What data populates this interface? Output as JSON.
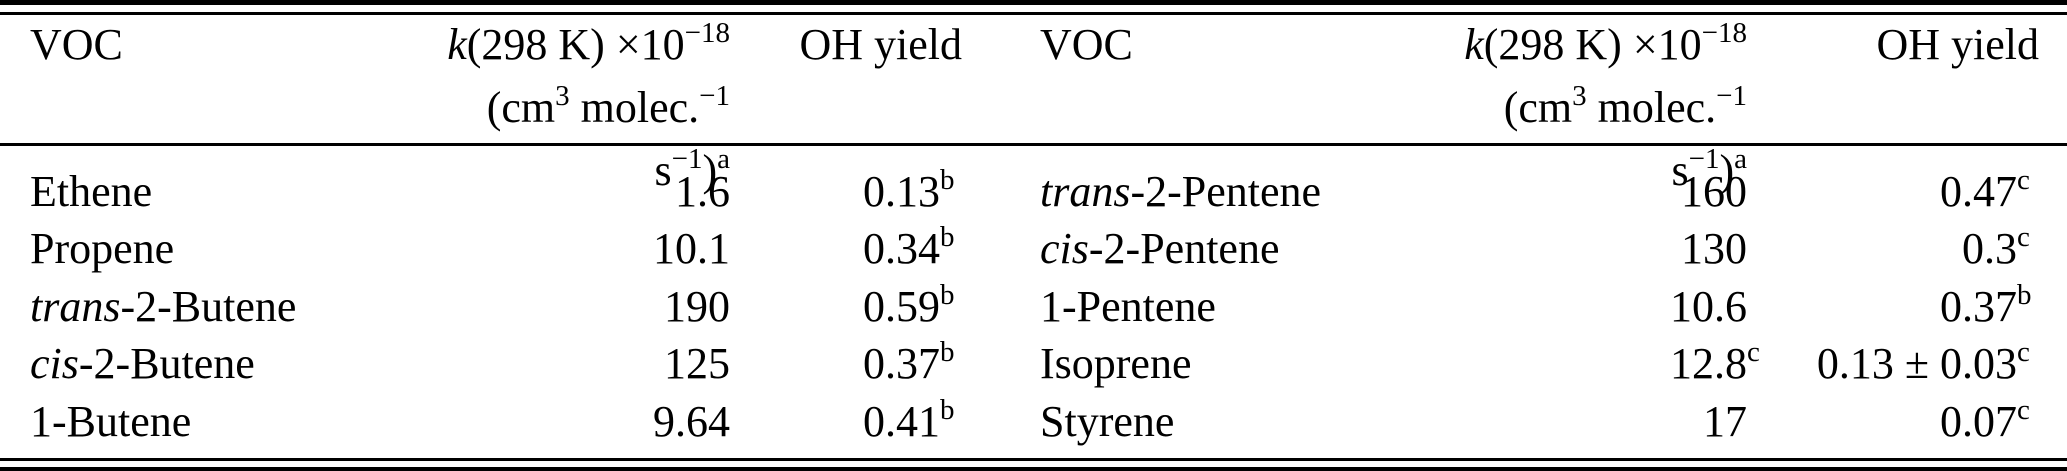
{
  "table": {
    "header": {
      "voc_label": "VOC",
      "k_line1_italic": "k",
      "k_line1_text": "(298 K) ×10",
      "k_line1_sup": "−18",
      "k_line2_t1": "(cm",
      "k_line2_s1": "3",
      "k_line2_t2": " molec.",
      "k_line2_s2": "−1",
      "k_line2_t3": " s",
      "k_line2_s3": "−1",
      "k_line2_t4": ")",
      "k_line2_s4": "a",
      "oh_label": "OH yield"
    },
    "left_rows": [
      {
        "voc_i": "",
        "voc_r": "Ethene",
        "k": "1.6",
        "k_sup": "",
        "oh": "0.13",
        "oh_sup": "b"
      },
      {
        "voc_i": "",
        "voc_r": "Propene",
        "k": "10.1",
        "k_sup": "",
        "oh": "0.34",
        "oh_sup": "b"
      },
      {
        "voc_i": "trans",
        "voc_r": "-2-Butene",
        "k": "190",
        "k_sup": "",
        "oh": "0.59",
        "oh_sup": "b"
      },
      {
        "voc_i": "cis",
        "voc_r": "-2-Butene",
        "k": "125",
        "k_sup": "",
        "oh": "0.37",
        "oh_sup": "b"
      },
      {
        "voc_i": "",
        "voc_r": "1-Butene",
        "k": "9.64",
        "k_sup": "",
        "oh": "0.41",
        "oh_sup": "b"
      }
    ],
    "right_rows": [
      {
        "voc_i": "trans",
        "voc_r": "-2-Pentene",
        "k": "160",
        "k_sup": "",
        "oh": "0.47",
        "oh_sup": "c"
      },
      {
        "voc_i": "cis",
        "voc_r": "-2-Pentene",
        "k": "130",
        "k_sup": "",
        "oh": "0.3",
        "oh_sup": "c"
      },
      {
        "voc_i": "",
        "voc_r": "1-Pentene",
        "k": "10.6",
        "k_sup": "",
        "oh": "0.37",
        "oh_sup": "b"
      },
      {
        "voc_i": "",
        "voc_r": "Isoprene",
        "k": "12.8",
        "k_sup": "c",
        "oh": "0.13 ± 0.03",
        "oh_sup": "c"
      },
      {
        "voc_i": "",
        "voc_r": "Styrene",
        "k": "17",
        "k_sup": "",
        "oh": "0.07",
        "oh_sup": "c"
      }
    ]
  }
}
